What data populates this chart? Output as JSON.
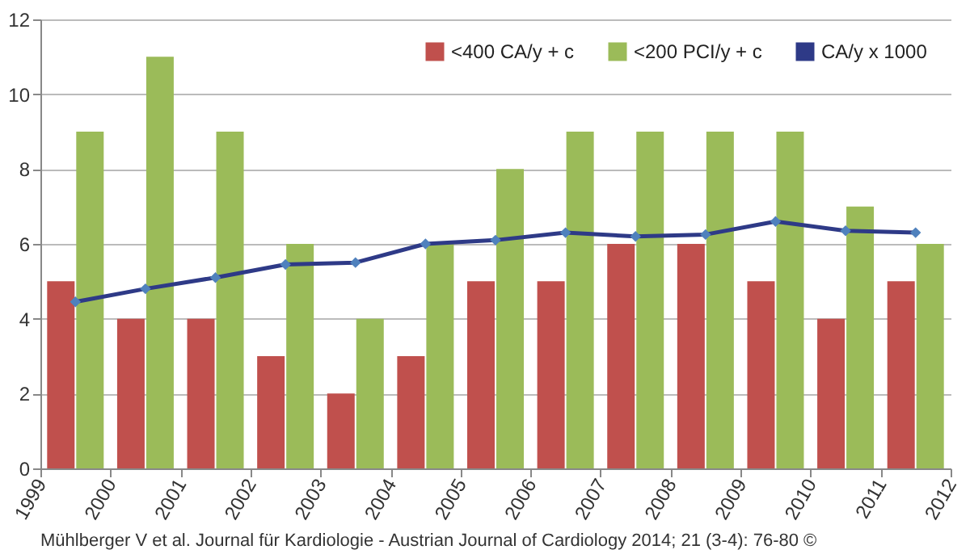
{
  "chart_data": {
    "type": "bar",
    "x": [
      1999.5,
      2000.5,
      2001.5,
      2002.5,
      2003.5,
      2004.5,
      2005.5,
      2006.5,
      2007.5,
      2008.5,
      2009.5,
      2010.5,
      2011.5
    ],
    "series": [
      {
        "name": "<400 CA/y + c",
        "color": "#c0504d",
        "values": [
          5,
          4,
          4,
          3,
          2,
          3,
          5,
          5,
          6,
          6,
          5,
          4,
          5
        ]
      },
      {
        "name": "<200 PCI/y + c",
        "color": "#9bbb59",
        "values": [
          9,
          11,
          9,
          6,
          4,
          6,
          8,
          9,
          9,
          9,
          9,
          7,
          6
        ]
      },
      {
        "name": "CA/y x 1000",
        "type": "line",
        "marker": "diamond",
        "color": "#2e3a87",
        "values": [
          4.45,
          4.8,
          5.1,
          5.45,
          5.5,
          6.0,
          6.1,
          6.3,
          6.2,
          6.25,
          6.6,
          6.35,
          6.3
        ]
      }
    ],
    "xlim": [
      1999,
      2012
    ],
    "xticks": [
      1999,
      2000,
      2001,
      2002,
      2003,
      2004,
      2005,
      2006,
      2007,
      2008,
      2009,
      2010,
      2011,
      2012
    ],
    "ylim": [
      0,
      12
    ],
    "yticks": [
      0,
      2,
      4,
      6,
      8,
      10,
      12
    ],
    "grid": "y",
    "legend": "top right",
    "annotations": [
      "Mühlberger V et al. Journal für Kardiologie - Austrian Journal of Cardiology 2014; 21 (3-4): 76-80 ©"
    ]
  }
}
